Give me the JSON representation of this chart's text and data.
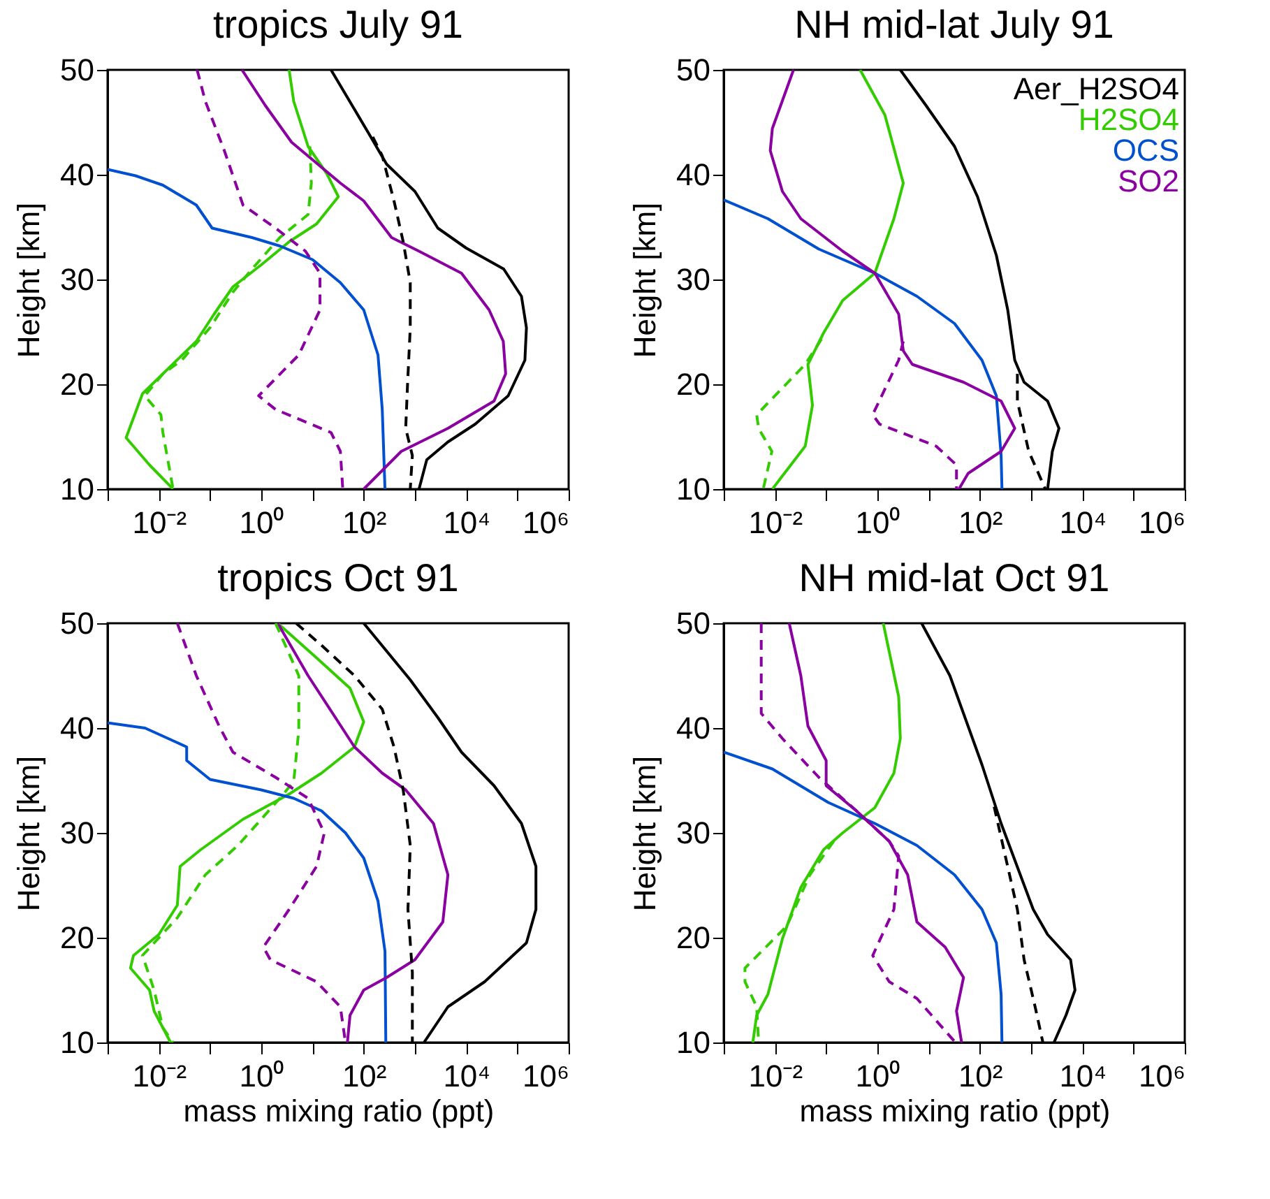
{
  "chart_data": [
    {
      "type": "line",
      "title": "tropics July 91",
      "ylabel": "Height [km]",
      "log": "x",
      "xlim": [
        0.001,
        1000000
      ],
      "ylim": [
        10,
        50
      ],
      "xticks": [
        {
          "value": 0.001,
          "label": null
        },
        {
          "value": 0.01,
          "label": "10⁻²"
        },
        {
          "value": 0.1,
          "label": null
        },
        {
          "value": 1,
          "label": "10⁰"
        },
        {
          "value": 10,
          "label": null
        },
        {
          "value": 100,
          "label": "10²"
        },
        {
          "value": 1000,
          "label": null
        },
        {
          "value": 10000,
          "label": "10⁴"
        },
        {
          "value": 100000,
          "label": null
        },
        {
          "value": 1000000,
          "label": "10⁶"
        }
      ],
      "yticks": [
        10,
        20,
        30,
        40,
        50
      ],
      "grid": false,
      "legend": false,
      "series": [
        {
          "color": "#000000",
          "line_style": "solid",
          "x": [
            23,
            123,
            280,
            1000,
            2800,
            10000,
            54000,
            120000,
            150000,
            140000,
            66000,
            15000,
            4400,
            1700,
            1200
          ],
          "values": [
            50,
            44,
            41,
            38.4,
            34.9,
            33,
            31,
            28.4,
            25.4,
            22.3,
            18.9,
            16.2,
            14.5,
            12.8,
            10
          ]
        },
        {
          "color": "#000000",
          "line_style": "dashed",
          "x": [
            150,
            230,
            390,
            590,
            810,
            810,
            720,
            660,
            890,
            810
          ],
          "values": [
            43.6,
            41.8,
            37.5,
            33.6,
            29.7,
            25.4,
            20.2,
            15.8,
            13.2,
            10
          ]
        },
        {
          "color": "#33cc00",
          "line_style": "solid",
          "x": [
            3.5,
            4.3,
            8.2,
            19,
            32,
            12,
            3.5,
            1,
            0.28,
            0.12,
            0.054,
            0.012,
            0.0048,
            0.0023,
            0.0066,
            0.019
          ],
          "values": [
            50,
            47,
            42.7,
            40.1,
            37.9,
            35.3,
            33.6,
            31.4,
            29.3,
            26.7,
            24.1,
            21,
            19.1,
            14.9,
            12.3,
            10
          ]
        },
        {
          "color": "#33cc00",
          "line_style": "dashed",
          "x": [
            8.9,
            9.5,
            8.2,
            2.3,
            0.66,
            0.28,
            0.1,
            0.028,
            0.012,
            0.0053,
            0.011,
            0.012,
            0.019
          ],
          "values": [
            42.7,
            39.2,
            36.2,
            34,
            31,
            28.8,
            25.4,
            22.3,
            21,
            18.9,
            17.1,
            15.4,
            10
          ]
        },
        {
          "color": "#0050d0",
          "line_style": "solid",
          "x": [
            0.001,
            0.0035,
            0.012,
            0.054,
            0.11,
            0.66,
            2.3,
            10,
            35,
            100,
            190,
            230,
            260
          ],
          "values": [
            40.5,
            39.9,
            39,
            37.1,
            34.9,
            34,
            33.2,
            31.9,
            29.7,
            27.1,
            22.8,
            17.6,
            10
          ]
        },
        {
          "color": "#8a00a0",
          "line_style": "solid",
          "x": [
            0.42,
            1.2,
            3.9,
            35,
            100,
            350,
            1200,
            8100,
            28000,
            53000,
            59000,
            35000,
            4400,
            540,
            100
          ],
          "values": [
            50,
            46.6,
            43.1,
            39.2,
            37.5,
            34,
            32.7,
            30.6,
            27.1,
            24.1,
            21,
            18.4,
            15.8,
            13.6,
            10
          ]
        },
        {
          "color": "#8a00a0",
          "line_style": "dashed",
          "x": [
            0.056,
            0.081,
            0.19,
            0.44,
            1.9,
            7.3,
            14,
            14,
            5.4,
            0.89,
            1.9,
            23,
            35,
            39
          ],
          "values": [
            50,
            47,
            42.3,
            37.1,
            34.9,
            32.7,
            30.6,
            27.1,
            22.8,
            18.9,
            17.6,
            15.4,
            13.6,
            10
          ]
        }
      ]
    },
    {
      "type": "line",
      "title": "NH mid-lat July 91",
      "ylabel": "Height [km]",
      "log": "x",
      "xlim": [
        0.001,
        1000000
      ],
      "ylim": [
        10,
        50
      ],
      "xticks": [
        {
          "value": 0.001,
          "label": null
        },
        {
          "value": 0.01,
          "label": "10⁻²"
        },
        {
          "value": 0.1,
          "label": null
        },
        {
          "value": 1,
          "label": "10⁰"
        },
        {
          "value": 10,
          "label": null
        },
        {
          "value": 100,
          "label": "10²"
        },
        {
          "value": 1000,
          "label": null
        },
        {
          "value": 10000,
          "label": "10⁴"
        },
        {
          "value": 100000,
          "label": null
        },
        {
          "value": 1000000,
          "label": "10⁶"
        }
      ],
      "yticks": [
        10,
        20,
        30,
        40,
        50
      ],
      "grid": false,
      "legend": "top right",
      "series": [
        {
          "name": "Aer_H2SO4",
          "color": "#000000",
          "line_style": "solid",
          "x": [
            2.8,
            8.9,
            32,
            90,
            210,
            350,
            480,
            730,
            2100,
            3500,
            2600,
            2100
          ],
          "values": [
            50,
            46.6,
            42.7,
            37.9,
            32.3,
            27.1,
            22.3,
            20.2,
            18.4,
            15.8,
            13.6,
            10
          ]
        },
        {
          "color": "#000000",
          "line_style": "dashed",
          "x": [
            540,
            540,
            900,
            1900
          ],
          "values": [
            21,
            18.4,
            13.6,
            10
          ]
        },
        {
          "name": "H2SO4",
          "color": "#33cc00",
          "line_style": "solid",
          "x": [
            0.46,
            1.4,
            3.2,
            2.1,
            0.89,
            0.21,
            0.089,
            0.044,
            0.054,
            0.039,
            0.0089
          ],
          "values": [
            50,
            45.7,
            39.2,
            35.8,
            30.6,
            28,
            24.9,
            21.9,
            18,
            14.1,
            10
          ]
        },
        {
          "color": "#33cc00",
          "line_style": "dashed",
          "x": [
            0.081,
            0.039,
            0.0044,
            0.0048,
            0.0087,
            0.0059
          ],
          "values": [
            24.3,
            21.9,
            17.1,
            15.8,
            13.6,
            10
          ]
        },
        {
          "name": "OCS",
          "color": "#0050d0",
          "line_style": "solid",
          "x": [
            0.001,
            0.0073,
            0.072,
            0.89,
            5.9,
            32,
            110,
            210,
            260,
            270
          ],
          "values": [
            37.6,
            35.8,
            32.9,
            30.6,
            28.4,
            25.8,
            22.3,
            18.9,
            13.2,
            10
          ]
        },
        {
          "name": "SO2",
          "color": "#8a00a0",
          "line_style": "solid",
          "x": [
            0.023,
            0.0089,
            0.0081,
            0.014,
            0.032,
            0.21,
            0.89,
            2.6,
            3.2,
            4.8,
            48,
            260,
            480,
            260,
            59,
            39
          ],
          "values": [
            50,
            44.4,
            42.3,
            38.4,
            35.8,
            32.7,
            30.6,
            26.7,
            23.2,
            21.9,
            20.2,
            18.4,
            15.8,
            13.6,
            11.5,
            10
          ]
        },
        {
          "color": "#8a00a0",
          "line_style": "dashed",
          "x": [
            3.2,
            2.6,
            0.81,
            1.1,
            14,
            35,
            35
          ],
          "values": [
            24.1,
            22.3,
            17.1,
            16.2,
            14.1,
            12.3,
            10
          ]
        }
      ]
    },
    {
      "type": "line",
      "title": "tropics Oct 91",
      "xlabel": "mass mixing ratio (ppt)",
      "ylabel": "Height [km]",
      "log": "x",
      "xlim": [
        0.001,
        1000000
      ],
      "ylim": [
        10,
        50
      ],
      "xticks": [
        {
          "value": 0.001,
          "label": null
        },
        {
          "value": 0.01,
          "label": "10⁻²"
        },
        {
          "value": 0.1,
          "label": null
        },
        {
          "value": 1,
          "label": "10⁰"
        },
        {
          "value": 10,
          "label": null
        },
        {
          "value": 100,
          "label": "10²"
        },
        {
          "value": 1000,
          "label": null
        },
        {
          "value": 10000,
          "label": "10⁴"
        },
        {
          "value": 100000,
          "label": null
        },
        {
          "value": 1000000,
          "label": "10⁶"
        }
      ],
      "yticks": [
        10,
        20,
        30,
        40,
        50
      ],
      "grid": false,
      "legend": false,
      "series": [
        {
          "color": "#000000",
          "line_style": "solid",
          "x": [
            100,
            810,
            2800,
            8100,
            35000,
            120000,
            230000,
            230000,
            150000,
            23000,
            4400,
            1500
          ],
          "values": [
            50,
            44.6,
            41,
            37.7,
            34.5,
            30.9,
            26.8,
            22.7,
            19.5,
            15.8,
            13.4,
            10
          ]
        },
        {
          "color": "#000000",
          "line_style": "dashed",
          "x": [
            4.8,
            15,
            66,
            230,
            390,
            590,
            810,
            730,
            890,
            890
          ],
          "values": [
            50,
            47.9,
            45,
            41.8,
            38.2,
            34.1,
            28.8,
            22.7,
            16.7,
            10
          ]
        },
        {
          "color": "#33cc00",
          "line_style": "solid",
          "x": [
            2.1,
            12,
            54,
            100,
            66,
            15,
            3.5,
            0.44,
            0.066,
            0.026,
            0.023,
            0.01,
            0.0032,
            0.0028,
            0.0066,
            0.0081,
            0.017
          ],
          "values": [
            50,
            46.7,
            43.8,
            40.6,
            38.2,
            35.7,
            33.7,
            31.3,
            28.4,
            26.8,
            23.1,
            20.3,
            18.3,
            17.1,
            15,
            13,
            10
          ]
        },
        {
          "color": "#33cc00",
          "line_style": "dashed",
          "x": [
            1.9,
            5.4,
            5.4,
            4.3,
            2.3,
            1,
            0.35,
            0.081,
            0.023,
            0.0081,
            0.0048,
            0.0081,
            0.012,
            0.019
          ],
          "values": [
            50,
            45,
            39.8,
            34.9,
            33.3,
            31.3,
            28.8,
            26,
            21.9,
            19.5,
            18.3,
            15,
            11.4,
            10
          ]
        },
        {
          "color": "#0050d0",
          "line_style": "solid",
          "x": [
            0.001,
            0.0054,
            0.035,
            0.035,
            0.1,
            1,
            4.3,
            15,
            44,
            100,
            190,
            260,
            270
          ],
          "values": [
            40.5,
            40,
            38.2,
            36.9,
            35.1,
            34.1,
            33.3,
            32.1,
            30,
            27.6,
            23.5,
            18.7,
            10
          ]
        },
        {
          "color": "#8a00a0",
          "line_style": "solid",
          "x": [
            2.1,
            8.2,
            28,
            66,
            230,
            660,
            2300,
            4400,
            3500,
            1000,
            280,
            100,
            54,
            48
          ],
          "values": [
            50,
            45,
            41,
            38.2,
            35.7,
            34.1,
            30.9,
            26,
            21.5,
            17.9,
            16.2,
            15,
            12.6,
            10
          ]
        },
        {
          "color": "#8a00a0",
          "line_style": "dashed",
          "x": [
            0.023,
            0.054,
            0.15,
            0.28,
            1.9,
            8.2,
            17,
            12,
            3.5,
            1.1,
            1.5,
            12,
            35,
            44
          ],
          "values": [
            50,
            45,
            40.2,
            37.7,
            35.3,
            33.3,
            30,
            26.8,
            22.7,
            19.1,
            17.9,
            15.8,
            13.4,
            10
          ]
        }
      ]
    },
    {
      "type": "line",
      "title": "NH mid-lat Oct 91",
      "xlabel": "mass mixing ratio (ppt)",
      "ylabel": "Height [km]",
      "log": "x",
      "xlim": [
        0.001,
        1000000
      ],
      "ylim": [
        10,
        50
      ],
      "xticks": [
        {
          "value": 0.001,
          "label": null
        },
        {
          "value": 0.01,
          "label": "10⁻²"
        },
        {
          "value": 0.1,
          "label": null
        },
        {
          "value": 1,
          "label": "10⁰"
        },
        {
          "value": 10,
          "label": null
        },
        {
          "value": 100,
          "label": "10²"
        },
        {
          "value": 1000,
          "label": null
        },
        {
          "value": 10000,
          "label": "10⁴"
        },
        {
          "value": 100000,
          "label": null
        },
        {
          "value": 1000000,
          "label": "10⁶"
        }
      ],
      "yticks": [
        10,
        20,
        30,
        40,
        50
      ],
      "grid": false,
      "legend": false,
      "series": [
        {
          "color": "#000000",
          "line_style": "solid",
          "x": [
            7.3,
            26,
            110,
            260,
            1100,
            2100,
            5900,
            7200,
            4800,
            2800
          ],
          "values": [
            50,
            45,
            36.5,
            30.9,
            22.7,
            20.3,
            17.9,
            15,
            12.6,
            10
          ]
        },
        {
          "color": "#000000",
          "line_style": "dashed",
          "x": [
            190,
            540,
            730,
            1200,
            1700
          ],
          "values": [
            32.5,
            22.7,
            17.9,
            13.4,
            10
          ]
        },
        {
          "color": "#33cc00",
          "line_style": "solid",
          "x": [
            1.3,
            2.6,
            2.8,
            2.1,
            0.89,
            0.21,
            0.089,
            0.032,
            0.014,
            0.0073,
            0.0044,
            0.0037
          ],
          "values": [
            50,
            43,
            39,
            35.7,
            32.4,
            30,
            28.4,
            24.8,
            19.9,
            14.6,
            12.6,
            10
          ]
        },
        {
          "color": "#33cc00",
          "line_style": "dashed",
          "x": [
            0.14,
            0.048,
            0.017,
            0.0026,
            0.0026,
            0.0044,
            0.0048
          ],
          "values": [
            29.2,
            26,
            21.1,
            17.1,
            15.8,
            13.4,
            10
          ]
        },
        {
          "color": "#0050d0",
          "line_style": "solid",
          "x": [
            0.001,
            0.0089,
            0.11,
            0.89,
            5.9,
            32,
            110,
            210,
            260,
            270
          ],
          "values": [
            37.7,
            36.1,
            32.9,
            30.9,
            28.8,
            26,
            22.7,
            19.5,
            14.6,
            10
          ]
        },
        {
          "color": "#8a00a0",
          "line_style": "solid",
          "x": [
            0.019,
            0.032,
            0.044,
            0.1,
            0.1,
            0.39,
            1.7,
            3.9,
            5.9,
            21,
            48,
            35,
            44
          ],
          "values": [
            50,
            45,
            40.2,
            36.9,
            34.5,
            32.1,
            29.2,
            26,
            21.5,
            19.1,
            16.2,
            13,
            10
          ]
        },
        {
          "color": "#8a00a0",
          "line_style": "dashed",
          "x": [
            0.0054,
            0.0054,
            0.014,
            0.072,
            0.39,
            1.7,
            2.6,
            2.1,
            0.81,
            1.7,
            5.9,
            32
          ],
          "values": [
            50,
            41.4,
            39,
            35.3,
            32.1,
            29.2,
            27.8,
            22.7,
            18.3,
            15.8,
            14.2,
            10.1
          ]
        }
      ]
    }
  ]
}
